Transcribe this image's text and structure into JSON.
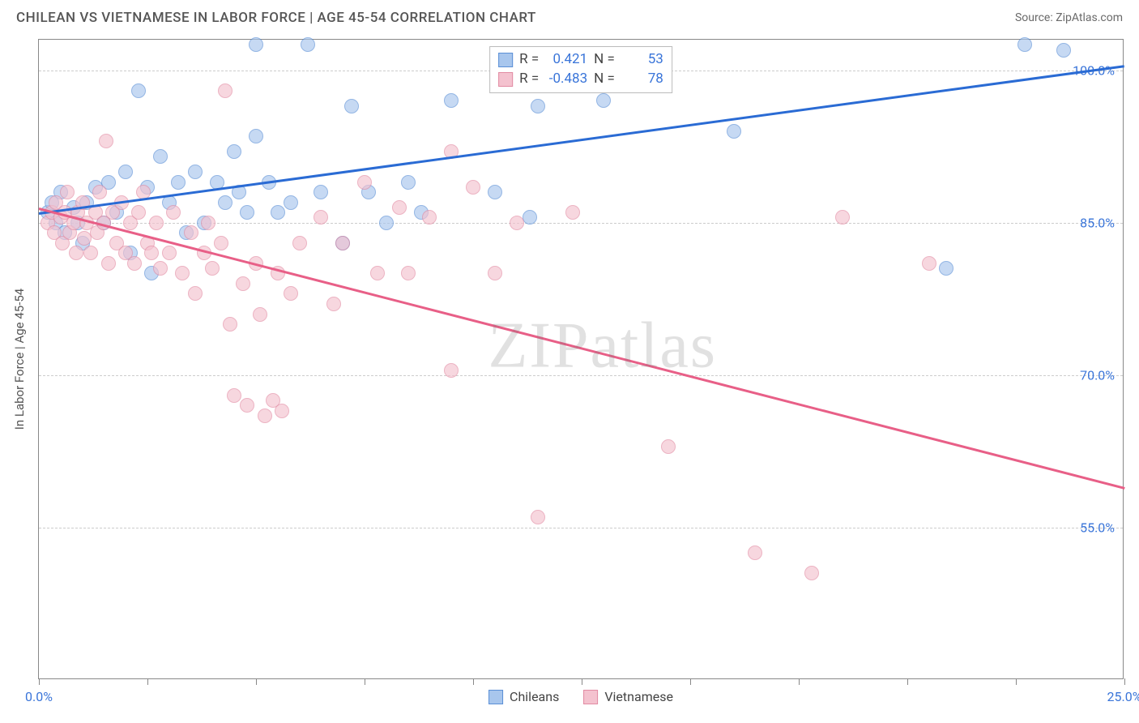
{
  "header": {
    "title": "CHILEAN VS VIETNAMESE IN LABOR FORCE | AGE 45-54 CORRELATION CHART",
    "source": "Source: ZipAtlas.com"
  },
  "chart": {
    "type": "scatter",
    "ylabel": "In Labor Force | Age 45-54",
    "watermark": "ZIPatlas",
    "xlim": [
      0,
      25
    ],
    "ylim": [
      40,
      103
    ],
    "xtick_positions": [
      0,
      2.5,
      5,
      7.5,
      10,
      12.5,
      15,
      17.5,
      20,
      22.5,
      25
    ],
    "xtick_labels": {
      "0": "0.0%",
      "25": "25.0%"
    },
    "ytick_positions": [
      55,
      70,
      85,
      100
    ],
    "ytick_labels": {
      "55": "55.0%",
      "70": "70.0%",
      "85": "85.0%",
      "100": "100.0%"
    },
    "grid_color": "#cccccc",
    "series": [
      {
        "name": "Chileans",
        "color_fill": "#a8c6ed",
        "color_stroke": "#5a8fd6",
        "r": 0.421,
        "n": 53,
        "trend": {
          "x1": 0,
          "y1": 86.0,
          "x2": 25,
          "y2": 100.5,
          "color": "#2a6bd4",
          "width": 3
        },
        "points": [
          [
            0.2,
            86
          ],
          [
            0.3,
            87
          ],
          [
            0.4,
            85
          ],
          [
            0.5,
            88
          ],
          [
            0.6,
            84
          ],
          [
            0.8,
            86.5
          ],
          [
            0.9,
            85
          ],
          [
            1.0,
            83
          ],
          [
            1.1,
            87
          ],
          [
            1.3,
            88.5
          ],
          [
            1.5,
            85
          ],
          [
            1.6,
            89
          ],
          [
            1.8,
            86
          ],
          [
            2.0,
            90
          ],
          [
            2.1,
            82
          ],
          [
            2.3,
            98
          ],
          [
            2.5,
            88.5
          ],
          [
            2.6,
            80
          ],
          [
            2.8,
            91.5
          ],
          [
            3.0,
            87
          ],
          [
            3.2,
            89
          ],
          [
            3.4,
            84
          ],
          [
            3.6,
            90
          ],
          [
            3.8,
            85
          ],
          [
            4.1,
            89
          ],
          [
            4.3,
            87
          ],
          [
            4.5,
            92
          ],
          [
            4.6,
            88
          ],
          [
            4.8,
            86
          ],
          [
            5.0,
            93.5
          ],
          [
            5.0,
            102.5
          ],
          [
            5.3,
            89
          ],
          [
            5.5,
            86
          ],
          [
            5.8,
            87
          ],
          [
            6.2,
            102.5
          ],
          [
            6.5,
            88
          ],
          [
            7.0,
            83
          ],
          [
            7.2,
            96.5
          ],
          [
            7.6,
            88
          ],
          [
            8.0,
            85
          ],
          [
            8.5,
            89
          ],
          [
            8.8,
            86
          ],
          [
            9.5,
            97
          ],
          [
            10.5,
            88
          ],
          [
            11.3,
            85.5
          ],
          [
            11.5,
            96.5
          ],
          [
            13.0,
            97
          ],
          [
            16.0,
            94
          ],
          [
            20.9,
            80.5
          ],
          [
            22.7,
            102.5
          ],
          [
            23.6,
            102
          ]
        ]
      },
      {
        "name": "Vietnamese",
        "color_fill": "#f4c2cf",
        "color_stroke": "#e28ba3",
        "r": -0.483,
        "n": 78,
        "trend": {
          "x1": 0,
          "y1": 86.5,
          "x2": 25,
          "y2": 59.0,
          "color": "#e85f87",
          "width": 3
        },
        "points": [
          [
            0.2,
            85
          ],
          [
            0.3,
            86
          ],
          [
            0.35,
            84
          ],
          [
            0.4,
            87
          ],
          [
            0.5,
            85.5
          ],
          [
            0.55,
            83
          ],
          [
            0.6,
            86
          ],
          [
            0.65,
            88
          ],
          [
            0.7,
            84
          ],
          [
            0.8,
            85
          ],
          [
            0.85,
            82
          ],
          [
            0.9,
            86
          ],
          [
            1.0,
            87
          ],
          [
            1.05,
            83.5
          ],
          [
            1.1,
            85
          ],
          [
            1.2,
            82
          ],
          [
            1.3,
            86
          ],
          [
            1.35,
            84
          ],
          [
            1.4,
            88
          ],
          [
            1.5,
            85
          ],
          [
            1.55,
            93
          ],
          [
            1.6,
            81
          ],
          [
            1.7,
            86
          ],
          [
            1.8,
            83
          ],
          [
            1.9,
            87
          ],
          [
            2.0,
            82
          ],
          [
            2.1,
            85
          ],
          [
            2.2,
            81
          ],
          [
            2.3,
            86
          ],
          [
            2.4,
            88
          ],
          [
            2.5,
            83
          ],
          [
            2.6,
            82
          ],
          [
            2.7,
            85
          ],
          [
            2.8,
            80.5
          ],
          [
            3.0,
            82
          ],
          [
            3.1,
            86
          ],
          [
            3.3,
            80
          ],
          [
            3.5,
            84
          ],
          [
            3.6,
            78
          ],
          [
            3.8,
            82
          ],
          [
            3.9,
            85
          ],
          [
            4.0,
            80.5
          ],
          [
            4.2,
            83
          ],
          [
            4.3,
            98
          ],
          [
            4.4,
            75
          ],
          [
            4.5,
            68
          ],
          [
            4.7,
            79
          ],
          [
            4.8,
            67
          ],
          [
            5.0,
            81
          ],
          [
            5.1,
            76
          ],
          [
            5.2,
            66
          ],
          [
            5.4,
            67.5
          ],
          [
            5.5,
            80
          ],
          [
            5.6,
            66.5
          ],
          [
            5.8,
            78
          ],
          [
            6.0,
            83
          ],
          [
            6.5,
            85.5
          ],
          [
            6.8,
            77
          ],
          [
            7.0,
            83
          ],
          [
            7.5,
            89
          ],
          [
            7.8,
            80
          ],
          [
            8.3,
            86.5
          ],
          [
            8.5,
            80
          ],
          [
            9.0,
            85.5
          ],
          [
            9.5,
            70.5
          ],
          [
            9.5,
            92
          ],
          [
            10.0,
            88.5
          ],
          [
            10.5,
            80
          ],
          [
            11.0,
            85
          ],
          [
            11.5,
            56
          ],
          [
            12.3,
            86
          ],
          [
            14.5,
            63
          ],
          [
            16.5,
            52.5
          ],
          [
            17.8,
            50.5
          ],
          [
            18.5,
            85.5
          ],
          [
            20.5,
            81
          ]
        ]
      }
    ],
    "legend_top": {
      "r_label": "R =",
      "n_label": "N ="
    },
    "legend_bottom": [
      {
        "label": "Chileans",
        "fill": "#a8c6ed",
        "stroke": "#5a8fd6"
      },
      {
        "label": "Vietnamese",
        "fill": "#f4c2cf",
        "stroke": "#e28ba3"
      }
    ]
  }
}
